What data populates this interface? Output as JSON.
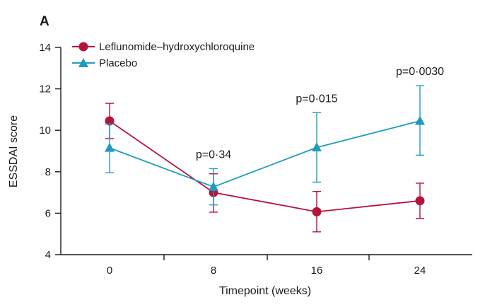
{
  "chart_data": {
    "type": "line",
    "panel_label": "A",
    "title": "",
    "xlabel": "Timepoint (weeks)",
    "ylabel": "ESSDAI score",
    "categories": [
      "0",
      "8",
      "16",
      "24"
    ],
    "ylim": [
      4,
      14
    ],
    "yticks": [
      "4",
      "6",
      "8",
      "10",
      "12",
      "14"
    ],
    "grid": false,
    "legend_position": "top-left",
    "series": [
      {
        "name": "Leflunomide–hydroxychloroquine",
        "color": "#b5143c",
        "marker": "circle",
        "values": [
          10.45,
          7.0,
          6.07,
          6.6
        ],
        "error_low": [
          9.6,
          6.05,
          5.1,
          5.75
        ],
        "error_high": [
          11.3,
          7.9,
          7.05,
          7.45
        ]
      },
      {
        "name": "Placebo",
        "color": "#1e9cc0",
        "marker": "triangle",
        "values": [
          9.15,
          7.27,
          9.17,
          10.45
        ],
        "error_low": [
          7.95,
          6.4,
          7.5,
          8.8
        ],
        "error_high": [
          10.3,
          8.15,
          10.85,
          12.15
        ]
      }
    ],
    "annotations": [
      {
        "category": "8",
        "text": "p=0·34"
      },
      {
        "category": "16",
        "text": "p=0·015"
      },
      {
        "category": "24",
        "text": "p=0·0030"
      }
    ]
  }
}
